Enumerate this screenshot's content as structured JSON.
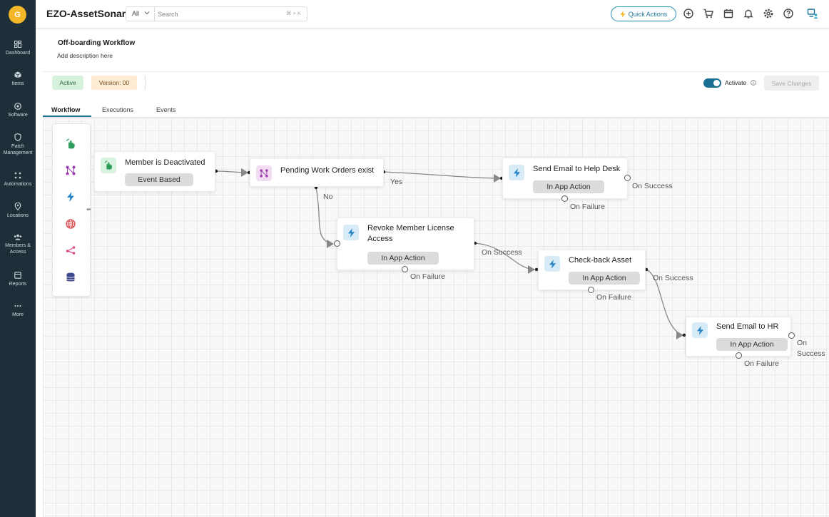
{
  "user": {
    "initial": "G"
  },
  "sidebar": {
    "items": [
      {
        "label": "Dashboard",
        "icon": "dashboard-icon"
      },
      {
        "label": "Items",
        "icon": "cube-icon"
      },
      {
        "label": "Software",
        "icon": "disc-icon"
      },
      {
        "label": "Patch Management",
        "icon": "shield-icon"
      },
      {
        "label": "Automations",
        "icon": "automation-icon"
      },
      {
        "label": "Locations",
        "icon": "location-pin-icon"
      },
      {
        "label": "Members & Access",
        "icon": "members-icon"
      },
      {
        "label": "Reports",
        "icon": "reports-icon"
      },
      {
        "label": "More",
        "icon": "more-dots-icon"
      }
    ]
  },
  "header": {
    "brand": "EZO-AssetSonar",
    "search": {
      "filter": "All",
      "placeholder": "Search",
      "shortcut": "⌘ + K"
    },
    "quick_actions": "Quick Actions",
    "icons": [
      "add-icon",
      "cart-icon",
      "calendar-icon",
      "bell-icon",
      "settings-icon",
      "help-icon",
      "user-menu-icon"
    ]
  },
  "workflow": {
    "title": "Off-boarding Workflow",
    "description": "Add description here",
    "status": "Active",
    "version": "Version: 00",
    "activate_label": "Activate",
    "save_label": "Save Changes"
  },
  "tabs": [
    {
      "label": "Workflow",
      "active": true
    },
    {
      "label": "Executions",
      "active": false
    },
    {
      "label": "Events",
      "active": false
    }
  ],
  "palette": [
    "trigger-hand-icon",
    "condition-icon",
    "action-bolt-icon",
    "webhook-globe-icon",
    "branch-icon",
    "database-icon"
  ],
  "nodes": [
    {
      "id": "trigger",
      "title": "Member is Deactivated",
      "pill": "Event Based",
      "icon": "trigger-hand-icon"
    },
    {
      "id": "condition",
      "title": "Pending Work Orders exist",
      "icon": "condition-icon"
    },
    {
      "id": "email_helpdesk",
      "title": "Send Email to Help Desk",
      "pill": "In App Action",
      "icon": "action-bolt-icon"
    },
    {
      "id": "revoke",
      "title": "Revoke Member License Access",
      "pill": "In App Action",
      "icon": "action-bolt-icon"
    },
    {
      "id": "checkback",
      "title": "Check-back Asset",
      "pill": "In App Action",
      "icon": "action-bolt-icon"
    },
    {
      "id": "email_hr",
      "title": "Send Email to HR",
      "pill": "In App Action",
      "icon": "action-bolt-icon"
    }
  ],
  "edge_labels": {
    "yes": "Yes",
    "no": "No",
    "on_success": "On Success",
    "on_failure": "On Failure"
  },
  "colors": {
    "sidebar_bg": "#1f2f3a",
    "accent": "#1a6f93",
    "trigger_icon_bg": "#d9f2e2",
    "condition_icon_bg": "#f1dcf3",
    "action_icon_bg": "#d8ecf8"
  }
}
